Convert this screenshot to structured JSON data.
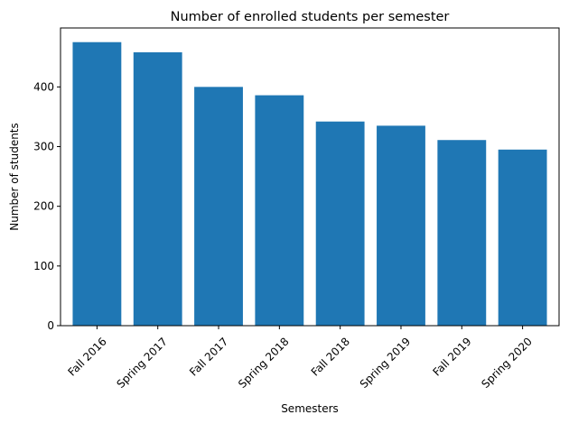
{
  "chart_data": {
    "type": "bar",
    "title": "Number of enrolled students per semester",
    "xlabel": "Semesters",
    "ylabel": "Number of students",
    "categories": [
      "Fall 2016",
      "Spring 2017",
      "Fall 2017",
      "Spring 2018",
      "Fall 2018",
      "Spring 2019",
      "Fall 2019",
      "Spring 2020"
    ],
    "values": [
      475,
      458,
      400,
      386,
      342,
      335,
      311,
      295
    ],
    "ylim": [
      0,
      498.75
    ],
    "yticks": [
      0,
      100,
      200,
      300,
      400
    ],
    "grid": false,
    "bar_color": "#1f77b4",
    "x_tick_rotation_deg": 45
  }
}
